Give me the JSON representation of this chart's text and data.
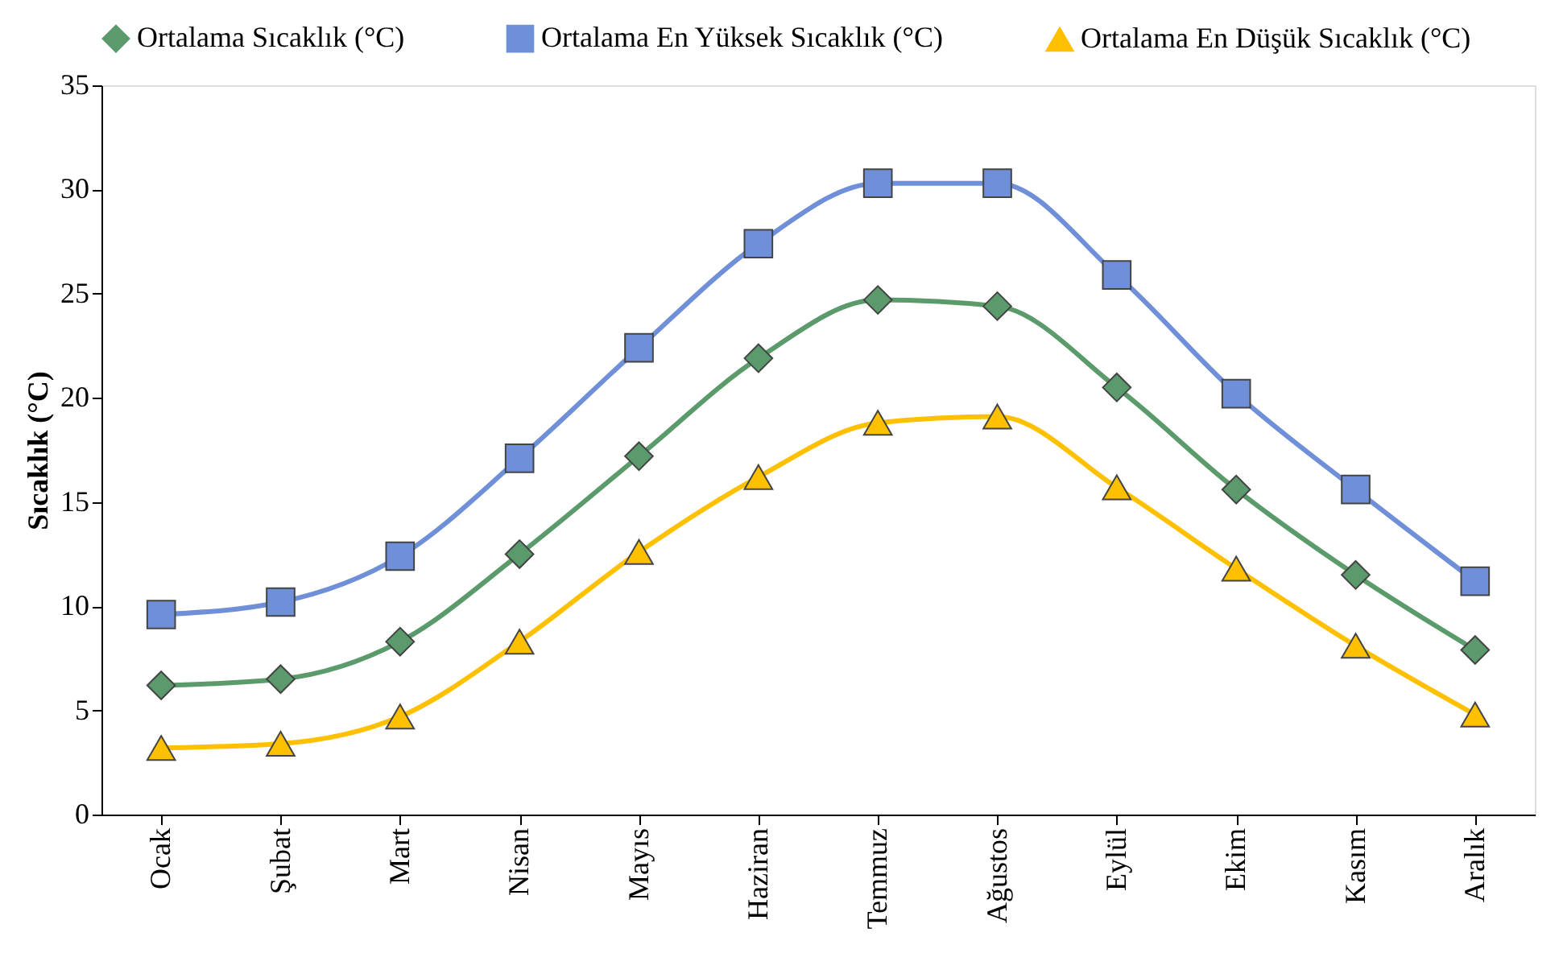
{
  "chart_data": {
    "type": "line",
    "ylabel": "Sıcaklık (°C)",
    "categories": [
      "Ocak",
      "Şubat",
      "Mart",
      "Nisan",
      "Mayıs",
      "Haziran",
      "Temmuz",
      "Ağustos",
      "Eylül",
      "Ekim",
      "Kasım",
      "Aralık"
    ],
    "series": [
      {
        "name": "Ortalama Sıcaklık (°C)",
        "color": "#5b9b6b",
        "marker": "diamond",
        "values": [
          6.2,
          6.5,
          8.3,
          12.5,
          17.2,
          21.9,
          24.7,
          24.4,
          20.5,
          15.6,
          11.5,
          7.9
        ]
      },
      {
        "name": "Ortalama En Yüksek Sıcaklık (°C)",
        "color": "#6f8fd8",
        "marker": "square",
        "values": [
          9.6,
          10.2,
          12.4,
          17.1,
          22.4,
          27.4,
          30.3,
          30.3,
          25.9,
          20.2,
          15.6,
          11.2
        ]
      },
      {
        "name": "Ortalama En Düşük Sıcaklık (°C)",
        "color": "#ffc000",
        "marker": "triangle",
        "values": [
          3.2,
          3.4,
          4.7,
          8.3,
          12.6,
          16.2,
          18.8,
          19.1,
          15.7,
          11.8,
          8.1,
          4.8
        ]
      }
    ],
    "ylim": [
      0,
      35
    ],
    "yticks": [
      0,
      5,
      10,
      15,
      20,
      25,
      30,
      35
    ],
    "grid": false,
    "legend": "top",
    "line_style": "solid"
  }
}
